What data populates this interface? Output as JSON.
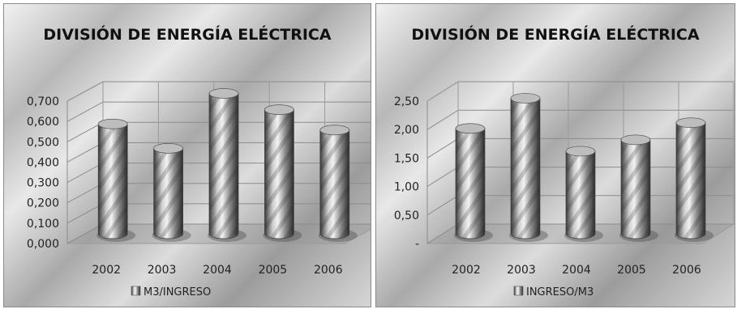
{
  "chart_data": [
    {
      "type": "bar",
      "title": "DIVISIÓN DE ENERGÍA ELÉCTRICA",
      "categories": [
        "2002",
        "2003",
        "2004",
        "2005",
        "2006"
      ],
      "series": [
        {
          "name": "M3/INGRESO",
          "values": [
            0.54,
            0.42,
            0.69,
            0.61,
            0.51
          ]
        }
      ],
      "y_ticks": [
        "0,000",
        "0,100",
        "0,200",
        "0,300",
        "0,400",
        "0,500",
        "0,600",
        "0,700"
      ],
      "ylim": [
        0,
        0.7
      ],
      "grid": true,
      "legend_position": "bottom",
      "colors": {
        "bar": "#8c8c8c"
      }
    },
    {
      "type": "bar",
      "title": "DIVISIÓN DE ENERGÍA ELÉCTRICA",
      "categories": [
        "2002",
        "2003",
        "2004",
        "2005",
        "2006"
      ],
      "series": [
        {
          "name": "INGRESO/M3",
          "values": [
            1.85,
            2.38,
            1.45,
            1.65,
            1.95
          ]
        }
      ],
      "y_ticks": [
        "-",
        "0,50",
        "1,00",
        "1,50",
        "2,00",
        "2,50"
      ],
      "ylim": [
        0,
        2.5
      ],
      "grid": true,
      "legend_position": "bottom",
      "colors": {
        "bar": "#8c8c8c"
      }
    }
  ]
}
